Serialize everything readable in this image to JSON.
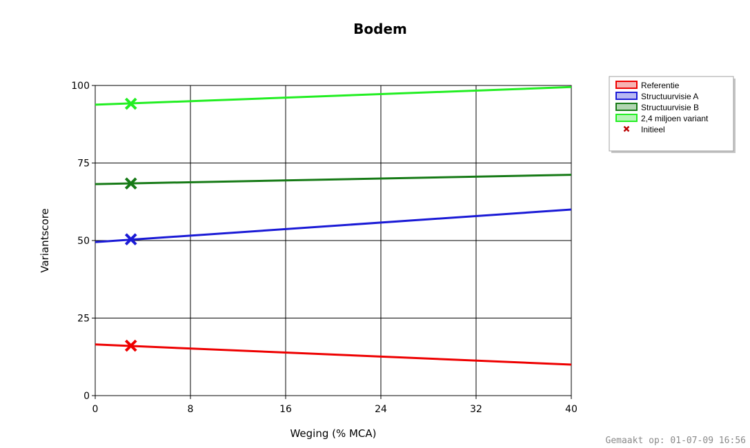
{
  "chart_data": {
    "type": "line",
    "title": "Bodem",
    "xlabel": "Weging (% MCA)",
    "ylabel": "Variantscore",
    "xlim": [
      0,
      40
    ],
    "ylim": [
      0,
      100
    ],
    "xticks": [
      "0",
      "8",
      "16",
      "24",
      "32",
      "40"
    ],
    "yticks": [
      "0",
      "25",
      "50",
      "75",
      "100"
    ],
    "grid": true,
    "legend_position": "top-right, outside plot",
    "series": [
      {
        "name": "Referentie",
        "color": "#ee0000",
        "fill": "#f6b3b3",
        "x": [
          0,
          40
        ],
        "y": [
          16.5,
          10
        ]
      },
      {
        "name": "Structuurvisie A",
        "color": "#1a1ad6",
        "fill": "#b8b8f2",
        "x": [
          0,
          40
        ],
        "y": [
          49.5,
          60
        ]
      },
      {
        "name": "Structuurvisie B",
        "color": "#167a16",
        "fill": "#b2d6b2",
        "x": [
          0,
          40
        ],
        "y": [
          68.2,
          71.2
        ]
      },
      {
        "name": "2,4 miljoen variant",
        "color": "#22ee22",
        "fill": "#b6f5b6",
        "x": [
          0,
          40
        ],
        "y": [
          93.8,
          99.5
        ]
      }
    ],
    "initial_marker": {
      "name": "Initieel",
      "color": "#bb0000",
      "x": 3,
      "points": [
        {
          "series": "Referentie",
          "y": 16.1
        },
        {
          "series": "Structuurvisie A",
          "y": 50.4
        },
        {
          "series": "Structuurvisie B",
          "y": 68.4
        },
        {
          "series": "2,4 miljoen variant",
          "y": 94.1
        }
      ]
    }
  },
  "footer": {
    "timestamp": "Gemaakt op: 01-07-09 16:56"
  }
}
